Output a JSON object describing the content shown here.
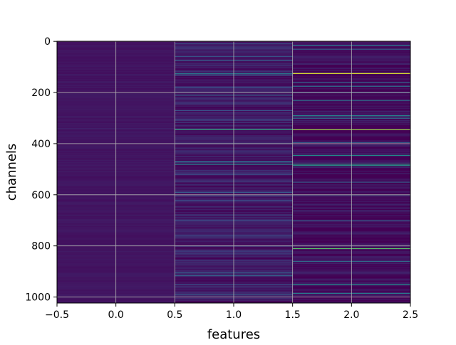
{
  "chart_data": {
    "type": "heatmap",
    "title": "",
    "xlabel": "features",
    "ylabel": "channels",
    "xlim": [
      -0.5,
      2.5
    ],
    "ylim": [
      1023.5,
      -0.5
    ],
    "x_ticks": [
      "−0.5",
      "0.0",
      "0.5",
      "1.0",
      "1.5",
      "2.0",
      "2.5"
    ],
    "x_tick_values": [
      -0.5,
      0.0,
      0.5,
      1.0,
      1.5,
      2.0,
      2.5
    ],
    "y_ticks": [
      "0",
      "200",
      "400",
      "600",
      "800",
      "1000"
    ],
    "y_tick_values": [
      0,
      200,
      400,
      600,
      800,
      1000
    ],
    "grid": true,
    "colormap": "viridis",
    "n_rows": 1024,
    "columns": [
      {
        "feature": 0,
        "base_level": 0.06,
        "highlights": [
          {
            "channel": 340,
            "level": 0.1
          }
        ]
      },
      {
        "feature": 1,
        "base_level": 0.08,
        "highlights": [
          {
            "channel": 8,
            "level": 0.22
          },
          {
            "channel": 58,
            "level": 0.28
          },
          {
            "channel": 75,
            "level": 0.3
          },
          {
            "channel": 125,
            "level": 0.4
          },
          {
            "channel": 130,
            "level": 0.32
          },
          {
            "channel": 180,
            "level": 0.26
          },
          {
            "channel": 210,
            "level": 0.3
          },
          {
            "channel": 270,
            "level": 0.24
          },
          {
            "channel": 305,
            "level": 0.22
          },
          {
            "channel": 345,
            "level": 0.58
          },
          {
            "channel": 400,
            "level": 0.22
          },
          {
            "channel": 470,
            "level": 0.38
          },
          {
            "channel": 480,
            "level": 0.45
          },
          {
            "channel": 520,
            "level": 0.22
          },
          {
            "channel": 590,
            "level": 0.28
          },
          {
            "channel": 620,
            "level": 0.24
          },
          {
            "channel": 700,
            "level": 0.22
          },
          {
            "channel": 760,
            "level": 0.2
          },
          {
            "channel": 820,
            "level": 0.24
          },
          {
            "channel": 905,
            "level": 0.3
          },
          {
            "channel": 915,
            "level": 0.32
          },
          {
            "channel": 950,
            "level": 0.26
          },
          {
            "channel": 990,
            "level": 0.28
          }
        ]
      },
      {
        "feature": 2,
        "base_level": 0.03,
        "highlights": [
          {
            "channel": 15,
            "level": 0.4
          },
          {
            "channel": 30,
            "level": 0.3
          },
          {
            "channel": 125,
            "level": 0.95
          },
          {
            "channel": 160,
            "level": 0.32
          },
          {
            "channel": 175,
            "level": 0.35
          },
          {
            "channel": 200,
            "level": 0.3
          },
          {
            "channel": 230,
            "level": 0.38
          },
          {
            "channel": 290,
            "level": 0.45
          },
          {
            "channel": 300,
            "level": 0.35
          },
          {
            "channel": 345,
            "level": 0.85
          },
          {
            "channel": 395,
            "level": 0.3
          },
          {
            "channel": 445,
            "level": 0.5
          },
          {
            "channel": 480,
            "level": 0.55
          },
          {
            "channel": 485,
            "level": 0.52
          },
          {
            "channel": 550,
            "level": 0.3
          },
          {
            "channel": 600,
            "level": 0.32
          },
          {
            "channel": 700,
            "level": 0.3
          },
          {
            "channel": 810,
            "level": 0.72
          },
          {
            "channel": 860,
            "level": 0.35
          },
          {
            "channel": 950,
            "level": 0.48
          },
          {
            "channel": 985,
            "level": 0.4
          }
        ]
      }
    ]
  }
}
